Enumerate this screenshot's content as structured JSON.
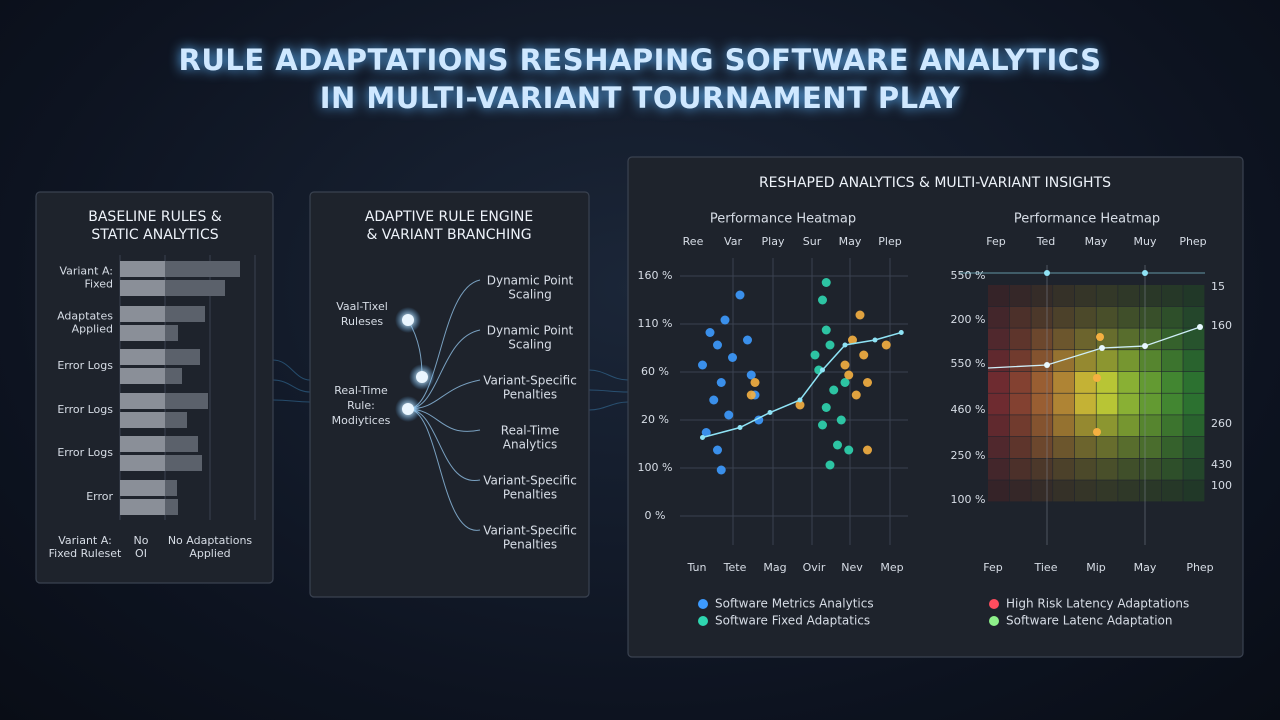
{
  "title": [
    "RULE ADAPTATIONS RESHAPING SOFTWARE ANALYTICS",
    "IN MULTI-VARIANT TOURNAMENT PLAY"
  ],
  "baseline": {
    "title": [
      "BASELINE RULES &",
      "STATIC ANALYTICS"
    ],
    "rows": [
      {
        "label": [
          "Variant A:",
          "Fixed"
        ],
        "bars": [
          120,
          105
        ]
      },
      {
        "label": [
          "Adaptates",
          "Applied"
        ],
        "bars": [
          85,
          58
        ]
      },
      {
        "label": [
          "Error Logs"
        ],
        "bars": [
          80,
          62
        ]
      },
      {
        "label": [
          "Error Logs"
        ],
        "bars": [
          88,
          67
        ]
      },
      {
        "label": [
          "Error Logs"
        ],
        "bars": [
          78,
          82
        ]
      },
      {
        "label": [
          "Error"
        ],
        "bars": [
          57,
          58
        ]
      }
    ],
    "footer": [
      [
        "Variant A:",
        "Fixed Ruleset"
      ],
      [
        "No",
        "OI"
      ],
      [
        "No Adaptations",
        "Applied"
      ]
    ]
  },
  "engine": {
    "title": [
      "ADAPTIVE RULE ENGINE",
      "& VARIANT BRANCHING"
    ],
    "inputs": [
      [
        "Vaal-Tixel",
        "Ruleses"
      ],
      [
        "Real-Time",
        "Rule:",
        "Modiytices"
      ]
    ],
    "branches": [
      [
        "Dynamic Point",
        "Scaling"
      ],
      [
        "Dynamic Point",
        "Scaling"
      ],
      [
        "Variant-Specific",
        "Penalties"
      ],
      [
        "Real-Time",
        "Analytics"
      ],
      [
        "Variant-Specific",
        "Penalties"
      ],
      [
        "Variant-Specific",
        "Penalties"
      ]
    ]
  },
  "insights": {
    "title": "RESHAPED ANALYTICS & MULTI-VARIANT INSIGHTS",
    "chart_data": {
      "type": "scatter",
      "title": "Performance Heatmap",
      "top_labels": [
        "Ree",
        "Var",
        "Play",
        "Sur",
        "May",
        "Plep"
      ],
      "y_labels": [
        "160 %",
        "110 %",
        "60 %",
        "20 %",
        "100 %",
        "0 %"
      ],
      "bottom_labels": [
        "Tun",
        "Tete",
        "Mag",
        "Ovir",
        "Nev",
        "Mep"
      ],
      "xlim": [
        0,
        6
      ],
      "ylim": [
        0,
        100
      ],
      "series": [
        {
          "name": "Software Metrics Analytics",
          "color": "#3d9bff",
          "x": [
            0.8,
            1.0,
            0.6,
            1.1,
            0.9,
            1.3,
            0.7,
            1.0,
            1.4,
            1.2,
            1.9,
            2.0,
            1.8,
            2.1,
            1.6,
            1.1
          ],
          "values": [
            75,
            70,
            62,
            55,
            48,
            42,
            35,
            28,
            65,
            80,
            58,
            50,
            72,
            40,
            90,
            20
          ]
        },
        {
          "name": "Software Fixed Adaptatics",
          "color": "#2fd6b0",
          "x": [
            3.8,
            3.9,
            4.0,
            3.7,
            4.1,
            3.9,
            3.8,
            4.2,
            4.0,
            3.6,
            4.4,
            4.3,
            3.9,
            4.5
          ],
          "values": [
            88,
            76,
            70,
            60,
            52,
            45,
            38,
            30,
            22,
            66,
            55,
            40,
            95,
            28
          ]
        },
        {
          "color": "#f5b041",
          "x": [
            4.6,
            4.9,
            4.5,
            5.0,
            4.7,
            2.0,
            1.9,
            3.2,
            4.8,
            5.0,
            5.5,
            4.4
          ],
          "values": [
            72,
            66,
            58,
            55,
            50,
            55,
            50,
            46,
            82,
            28,
            70,
            62
          ]
        },
        {
          "type": "line",
          "color": "#8fe3f5",
          "x": [
            0.6,
            1.6,
            2.4,
            3.2,
            3.8,
            4.4,
            5.2,
            5.9
          ],
          "values": [
            33,
            37,
            43,
            48,
            60,
            70,
            72,
            75
          ]
        }
      ]
    },
    "heatmap": {
      "title": "Performance Heatmap",
      "top_labels": [
        "Fep",
        "Ted",
        "May",
        "Muy",
        "Phep"
      ],
      "left_labels": [
        "550 %",
        "200 %",
        "550 %",
        "460 %",
        "250 %",
        "100 %"
      ],
      "right_labels": [
        "15",
        "160",
        "260",
        "430",
        "100"
      ],
      "bottom_labels": [
        "Fep",
        "Tiee",
        "Mip",
        "May",
        "Phep"
      ],
      "legend": [
        {
          "name": "High Risk Latency Adaptations",
          "color": "#ff4d5e"
        },
        {
          "name": "Software Latenc Adaptation",
          "color": "#8ef08a"
        }
      ]
    }
  }
}
